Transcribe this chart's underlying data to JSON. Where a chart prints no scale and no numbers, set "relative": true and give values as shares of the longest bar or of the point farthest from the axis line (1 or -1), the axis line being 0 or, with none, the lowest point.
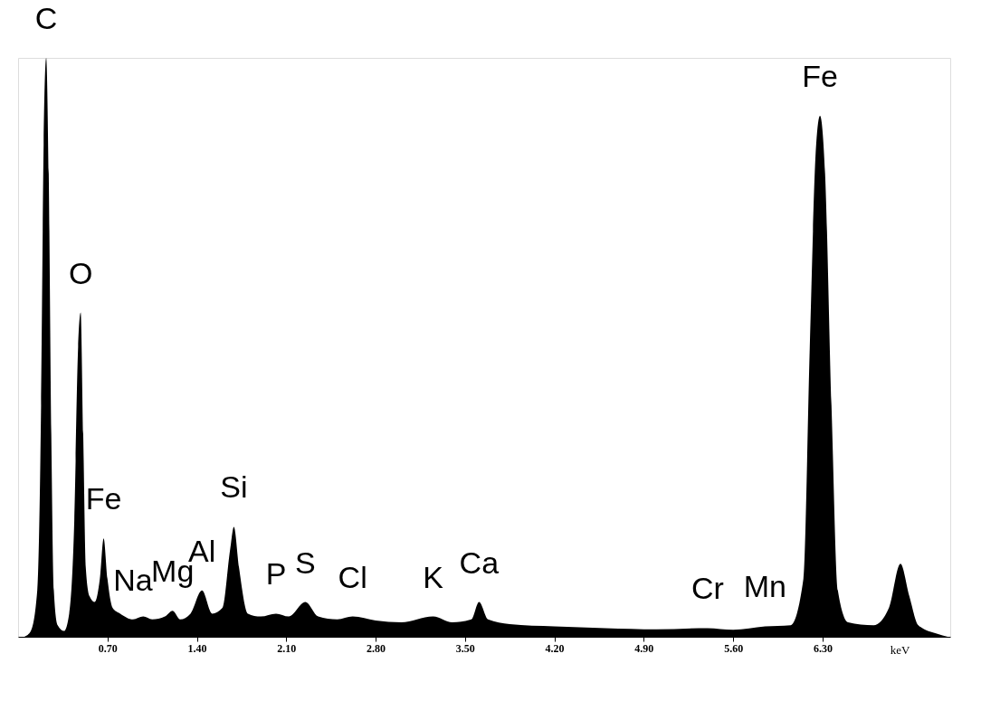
{
  "chart_data": {
    "type": "area",
    "relative": true,
    "xlabel": "keV",
    "xlim": [
      0,
      7.3
    ],
    "xticks": [
      {
        "value": 0.7,
        "label": "0.70"
      },
      {
        "value": 1.4,
        "label": "1.40"
      },
      {
        "value": 2.1,
        "label": "2.10"
      },
      {
        "value": 2.8,
        "label": "2.80"
      },
      {
        "value": 3.5,
        "label": "3.50"
      },
      {
        "value": 4.2,
        "label": "4.20"
      },
      {
        "value": 4.9,
        "label": "4.90"
      },
      {
        "value": 5.6,
        "label": "5.60"
      },
      {
        "value": 6.3,
        "label": "6.30"
      }
    ],
    "x": [
      0.05,
      0.1,
      0.15,
      0.18,
      0.2,
      0.22,
      0.24,
      0.26,
      0.28,
      0.31,
      0.36,
      0.4,
      0.44,
      0.47,
      0.49,
      0.51,
      0.53,
      0.56,
      0.6,
      0.64,
      0.67,
      0.7,
      0.74,
      0.8,
      0.9,
      0.98,
      1.05,
      1.15,
      1.21,
      1.27,
      1.35,
      1.44,
      1.52,
      1.6,
      1.66,
      1.69,
      1.73,
      1.8,
      1.9,
      2.02,
      2.12,
      2.25,
      2.35,
      2.5,
      2.62,
      2.8,
      3.0,
      3.25,
      3.4,
      3.55,
      3.61,
      3.68,
      3.85,
      4.2,
      4.6,
      5.0,
      5.4,
      5.6,
      5.85,
      6.05,
      6.15,
      6.2,
      6.25,
      6.28,
      6.32,
      6.37,
      6.42,
      6.5,
      6.7,
      6.82,
      6.91,
      6.98,
      7.05,
      7.2,
      7.28
    ],
    "series": [
      {
        "color": "#000000",
        "values": [
          0,
          0.01,
          0.08,
          0.4,
          0.85,
          1.0,
          0.8,
          0.35,
          0.08,
          0.02,
          0.01,
          0.04,
          0.2,
          0.5,
          0.56,
          0.35,
          0.12,
          0.07,
          0.06,
          0.1,
          0.17,
          0.1,
          0.05,
          0.04,
          0.03,
          0.035,
          0.03,
          0.035,
          0.045,
          0.03,
          0.04,
          0.08,
          0.04,
          0.05,
          0.15,
          0.19,
          0.12,
          0.04,
          0.035,
          0.04,
          0.035,
          0.06,
          0.035,
          0.03,
          0.035,
          0.028,
          0.025,
          0.035,
          0.025,
          0.03,
          0.06,
          0.03,
          0.022,
          0.018,
          0.015,
          0.013,
          0.015,
          0.012,
          0.018,
          0.02,
          0.1,
          0.5,
          0.85,
          0.9,
          0.8,
          0.4,
          0.08,
          0.025,
          0.02,
          0.05,
          0.126,
          0.07,
          0.02,
          0.005,
          0
        ]
      }
    ],
    "annotations": [
      {
        "text": "C",
        "x": 0.22,
        "y": 1.0
      },
      {
        "text": "O",
        "x": 0.49,
        "y": 0.56
      },
      {
        "text": "Fe",
        "x": 0.67,
        "y": 0.17
      },
      {
        "text": "Na",
        "x": 0.9,
        "y": 0.03
      },
      {
        "text": "Mg",
        "x": 1.21,
        "y": 0.045
      },
      {
        "text": "Al",
        "x": 1.44,
        "y": 0.08
      },
      {
        "text": "Si",
        "x": 1.69,
        "y": 0.19
      },
      {
        "text": "P",
        "x": 2.02,
        "y": 0.04
      },
      {
        "text": "S",
        "x": 2.25,
        "y": 0.06
      },
      {
        "text": "Cl",
        "x": 2.62,
        "y": 0.035
      },
      {
        "text": "K",
        "x": 3.25,
        "y": 0.035
      },
      {
        "text": "Ca",
        "x": 3.61,
        "y": 0.06
      },
      {
        "text": "Cr",
        "x": 5.4,
        "y": 0.015
      },
      {
        "text": "Mn",
        "x": 5.85,
        "y": 0.018
      },
      {
        "text": "Fe",
        "x": 6.28,
        "y": 0.9
      }
    ]
  }
}
